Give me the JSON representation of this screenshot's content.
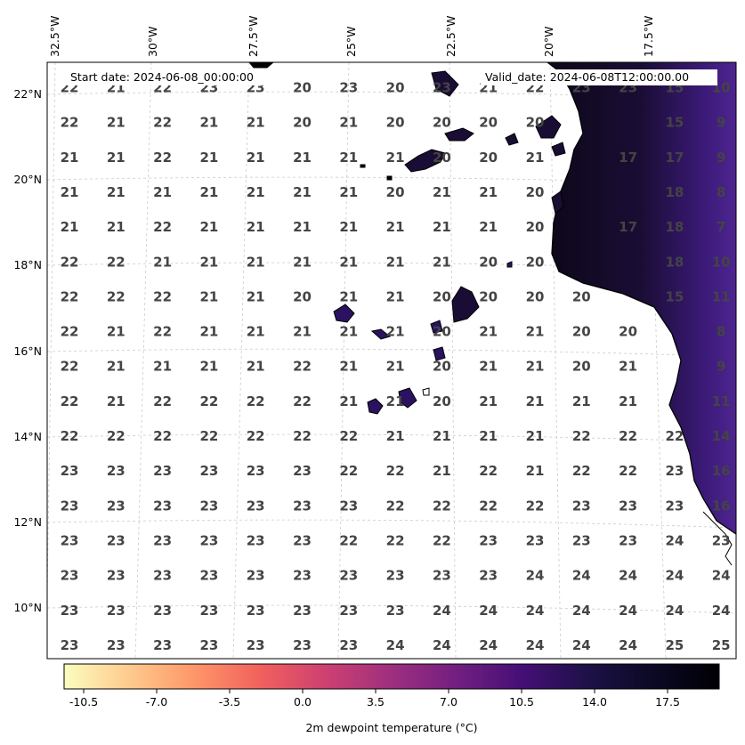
{
  "header": {
    "start_date": "Start date: 2024-06-08_00:00:00",
    "valid_date": "Valid_date: 2024-06-08T12:00:00.00"
  },
  "longitude_labels": [
    "32.5°W",
    "30°W",
    "27.5°W",
    "25°W",
    "22.5°W",
    "20°W",
    "17.5°W"
  ],
  "latitude_labels": [
    "22°N",
    "20°N",
    "18°N",
    "16°N",
    "14°N",
    "12°N",
    "10°N"
  ],
  "colorbar": {
    "label": "2m dewpoint temperature ($^\\circ$C)",
    "ticks": [
      "-10.5",
      "-7.0",
      "-3.5",
      "0.0",
      "3.5",
      "7.0",
      "10.5",
      "14.0",
      "17.5"
    ],
    "colormap": "magma_r",
    "range": [
      -12.25,
      19.25
    ]
  },
  "grid_values": [
    [
      "22",
      "21",
      "22",
      "23",
      "23",
      "20",
      "23",
      "20",
      "23",
      "21",
      "22",
      "23",
      "23",
      "15",
      "10"
    ],
    [
      "22",
      "21",
      "22",
      "21",
      "21",
      "20",
      "21",
      "20",
      "20",
      "20",
      "20",
      "",
      "",
      "15",
      "9"
    ],
    [
      "21",
      "21",
      "22",
      "21",
      "21",
      "21",
      "21",
      "21",
      "20",
      "20",
      "21",
      "",
      "17",
      "17",
      "9"
    ],
    [
      "21",
      "21",
      "21",
      "21",
      "21",
      "21",
      "21",
      "20",
      "21",
      "21",
      "20",
      "",
      "",
      "18",
      "8"
    ],
    [
      "21",
      "21",
      "22",
      "21",
      "21",
      "21",
      "21",
      "21",
      "21",
      "21",
      "20",
      "",
      "17",
      "18",
      "7"
    ],
    [
      "22",
      "22",
      "21",
      "21",
      "21",
      "21",
      "21",
      "21",
      "21",
      "20",
      "20",
      "",
      "",
      "18",
      "10"
    ],
    [
      "22",
      "22",
      "22",
      "21",
      "21",
      "20",
      "21",
      "21",
      "20",
      "20",
      "20",
      "20",
      "",
      "15",
      "11"
    ],
    [
      "22",
      "21",
      "22",
      "21",
      "21",
      "21",
      "21",
      "21",
      "20",
      "21",
      "21",
      "20",
      "20",
      "",
      "8"
    ],
    [
      "22",
      "21",
      "21",
      "21",
      "21",
      "22",
      "21",
      "21",
      "20",
      "21",
      "21",
      "20",
      "21",
      "",
      "9"
    ],
    [
      "22",
      "21",
      "22",
      "22",
      "22",
      "22",
      "21",
      "21",
      "20",
      "21",
      "21",
      "21",
      "21",
      "",
      "11"
    ],
    [
      "22",
      "22",
      "22",
      "22",
      "22",
      "22",
      "22",
      "21",
      "21",
      "21",
      "21",
      "22",
      "22",
      "22",
      "14"
    ],
    [
      "23",
      "23",
      "23",
      "23",
      "23",
      "23",
      "22",
      "22",
      "21",
      "22",
      "21",
      "22",
      "22",
      "23",
      "16"
    ],
    [
      "23",
      "23",
      "23",
      "23",
      "23",
      "23",
      "23",
      "22",
      "22",
      "22",
      "22",
      "23",
      "23",
      "23",
      "16"
    ],
    [
      "23",
      "23",
      "23",
      "23",
      "23",
      "23",
      "22",
      "22",
      "22",
      "23",
      "23",
      "23",
      "23",
      "24",
      "23"
    ],
    [
      "23",
      "23",
      "23",
      "23",
      "23",
      "23",
      "23",
      "23",
      "23",
      "23",
      "24",
      "24",
      "24",
      "24",
      "24"
    ],
    [
      "23",
      "23",
      "23",
      "23",
      "23",
      "23",
      "23",
      "23",
      "24",
      "24",
      "24",
      "24",
      "24",
      "24",
      "24"
    ],
    [
      "23",
      "23",
      "23",
      "23",
      "23",
      "23",
      "23",
      "24",
      "24",
      "24",
      "24",
      "24",
      "24",
      "25",
      "25"
    ]
  ]
}
